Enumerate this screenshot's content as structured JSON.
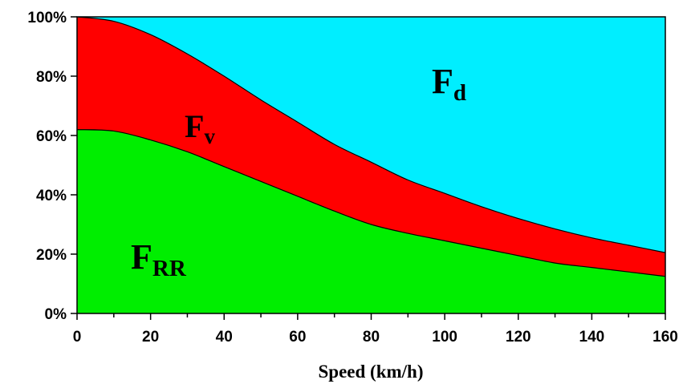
{
  "chart_data": {
    "type": "area",
    "xlabel": "Speed (km/h)",
    "ylabel": "",
    "xlim": [
      0,
      160
    ],
    "ylim": [
      0,
      100
    ],
    "x_ticks": [
      "0",
      "20",
      "40",
      "60",
      "80",
      "100",
      "120",
      "140",
      "160"
    ],
    "y_ticks": [
      "0%",
      "20%",
      "40%",
      "60%",
      "80%",
      "100%"
    ],
    "stacking": "percent",
    "grid": false,
    "x": [
      0,
      10,
      20,
      30,
      40,
      50,
      60,
      70,
      80,
      90,
      100,
      110,
      120,
      130,
      140,
      150,
      160
    ],
    "series": [
      {
        "label_main": "F",
        "label_sub": "RR",
        "color": "#00ee00",
        "upper": [
          62,
          61.5,
          58.5,
          54.5,
          49.5,
          44.5,
          39.5,
          34.5,
          30,
          27,
          24.5,
          22,
          19.5,
          17,
          15.5,
          14,
          12.5
        ]
      },
      {
        "label_main": "F",
        "label_sub": "v",
        "color": "#ff0000",
        "upper": [
          100,
          98.5,
          94,
          87.5,
          80,
          72,
          64.5,
          57,
          51,
          45,
          40.5,
          36,
          32,
          28.5,
          25.5,
          23,
          20.5
        ]
      },
      {
        "label_main": "F",
        "label_sub": "d",
        "color": "#00eeff",
        "upper": [
          100,
          100,
          100,
          100,
          100,
          100,
          100,
          100,
          100,
          100,
          100,
          100,
          100,
          100,
          100,
          100,
          100
        ]
      }
    ]
  }
}
